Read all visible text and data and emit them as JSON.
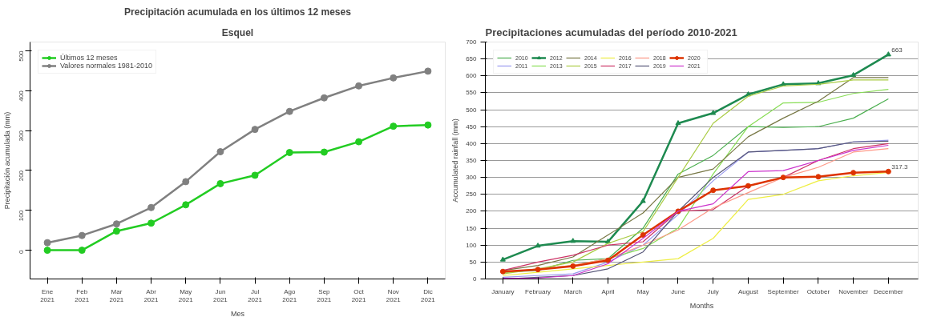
{
  "chart_data": [
    {
      "type": "line",
      "title": "Precipitación acumulada en los últimos 12 meses",
      "subtitle": "Esquel",
      "xlabel": "Mes",
      "ylabel": "Precipitación acumulada (mm)",
      "categories": [
        "Ene\n2021",
        "Feb\n2021",
        "Mar\n2021",
        "Abr\n2021",
        "May\n2021",
        "Jun\n2021",
        "Jul\n2021",
        "Ago\n2021",
        "Sep\n2021",
        "Oct\n2021",
        "Nov\n2021",
        "Dic\n2021"
      ],
      "series": [
        {
          "name": "Últimos 12 meses",
          "color": "#22cc22",
          "values": [
            0,
            0,
            48,
            68,
            114,
            167,
            188,
            245,
            246,
            272,
            311,
            314
          ]
        },
        {
          "name": "Valores normales 1981-2010",
          "color": "#808080",
          "values": [
            19,
            37,
            66,
            107,
            172,
            247,
            303,
            348,
            382,
            412,
            432,
            449
          ]
        }
      ],
      "ylim": [
        -72,
        522
      ],
      "yticks": [
        0,
        100,
        200,
        300,
        400,
        500
      ],
      "grid": false,
      "legend": "top left",
      "marker": "circle",
      "line_style": "solid"
    },
    {
      "type": "line",
      "title": "Precipitaciones acumuladas del período 2010-2021",
      "xlabel": "Months",
      "ylabel": "Accumulated rainfall (mm)",
      "categories": [
        "January",
        "February",
        "March",
        "April",
        "May",
        "June",
        "July",
        "August",
        "September",
        "October",
        "November",
        "December"
      ],
      "series": [
        {
          "name": "2010",
          "color": "#4caf50",
          "values": [
            20,
            25,
            55,
            60,
            150,
            310,
            365,
            450,
            448,
            450,
            475,
            532
          ]
        },
        {
          "name": "2011",
          "color": "#9999ee",
          "values": [
            5,
            10,
            15,
            50,
            100,
            190,
            290,
            375,
            380,
            385,
            405,
            410
          ]
        },
        {
          "name": "2012",
          "color": "#1e8a50",
          "marker": "triangle",
          "values": [
            57,
            98,
            112,
            110,
            230,
            460,
            490,
            545,
            575,
            578,
            602,
            663
          ]
        },
        {
          "name": "2013",
          "color": "#88dd55",
          "values": [
            18,
            30,
            40,
            60,
            90,
            150,
            310,
            450,
            520,
            522,
            548,
            560
          ]
        },
        {
          "name": "2014",
          "color": "#777744",
          "values": [
            25,
            40,
            65,
            130,
            195,
            300,
            325,
            420,
            475,
            525,
            595,
            595
          ]
        },
        {
          "name": "2015",
          "color": "#aacc44",
          "values": [
            15,
            30,
            50,
            105,
            140,
            300,
            460,
            540,
            570,
            575,
            588,
            588
          ]
        },
        {
          "name": "2016",
          "color": "#eeee44",
          "values": [
            10,
            20,
            30,
            40,
            50,
            60,
            120,
            235,
            250,
            290,
            305,
            315
          ]
        },
        {
          "name": "2017",
          "color": "#cc3366",
          "values": [
            25,
            50,
            70,
            100,
            110,
            200,
            205,
            275,
            300,
            350,
            385,
            400
          ]
        },
        {
          "name": "2018",
          "color": "#ff9988",
          "values": [
            20,
            30,
            40,
            60,
            100,
            145,
            210,
            255,
            300,
            330,
            375,
            385
          ]
        },
        {
          "name": "2019",
          "color": "#555577",
          "values": [
            0,
            5,
            10,
            30,
            80,
            200,
            300,
            375,
            380,
            385,
            405,
            407
          ]
        },
        {
          "name": "2020",
          "color": "#dd3300",
          "marker": "circle",
          "values": [
            22,
            28,
            38,
            55,
            130,
            200,
            262,
            275,
            300,
            302,
            314,
            317.3
          ]
        },
        {
          "name": "2021",
          "color": "#cc33cc",
          "values": [
            2,
            3,
            10,
            45,
            120,
            200,
            222,
            317,
            320,
            350,
            380,
            395
          ]
        }
      ],
      "annotations": [
        {
          "text": "663",
          "x": "December",
          "y": 663
        },
        {
          "text": "317.3",
          "x": "December",
          "y": 317.3
        }
      ],
      "ylim": [
        0,
        700
      ],
      "yticks": [
        0,
        50,
        100,
        150,
        200,
        250,
        300,
        350,
        400,
        450,
        500,
        550,
        600,
        650,
        700
      ],
      "grid": "y",
      "legend": "top left",
      "marker": "none",
      "line_style": "solid"
    }
  ]
}
